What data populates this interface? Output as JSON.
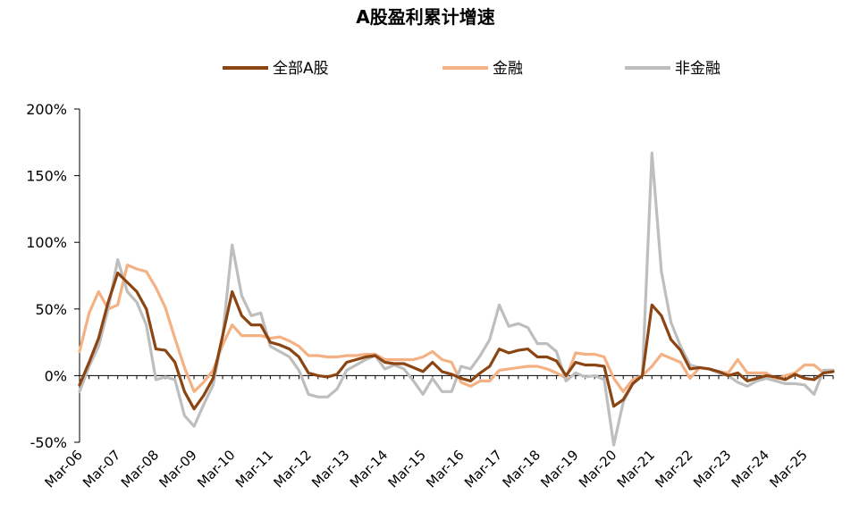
{
  "chart_data": {
    "type": "line",
    "title": "A股盈利累计增速",
    "xlabel": "",
    "ylabel": "",
    "ylim": [
      -50,
      200
    ],
    "y_ticks": [
      "200%",
      "150%",
      "100%",
      "50%",
      "0%",
      "-50%"
    ],
    "y_tick_values": [
      200,
      150,
      100,
      50,
      0,
      -50
    ],
    "x_ticks": [
      "Mar-06",
      "Mar-07",
      "Mar-08",
      "Mar-09",
      "Mar-10",
      "Mar-11",
      "Mar-12",
      "Mar-13",
      "Mar-14",
      "Mar-15",
      "Mar-16",
      "Mar-17",
      "Mar-18",
      "Mar-19",
      "Mar-20",
      "Mar-21",
      "Mar-22",
      "Mar-23",
      "Mar-24",
      "Mar-25"
    ],
    "x_start": "2006-03",
    "frequency": "quarterly",
    "grid": false,
    "legend_position": "top",
    "series": [
      {
        "name": "全部A股",
        "color": "#8B4513",
        "values": [
          -7,
          10,
          28,
          55,
          77,
          70,
          63,
          50,
          20,
          19,
          10,
          -12,
          -25,
          -15,
          -2,
          30,
          63,
          45,
          38,
          38,
          25,
          23,
          20,
          14,
          2,
          0,
          -1,
          1,
          10,
          12,
          14,
          15,
          10,
          9,
          9,
          6,
          3,
          10,
          3,
          1,
          -2,
          -4,
          2,
          7,
          20,
          17,
          19,
          20,
          14,
          14,
          11,
          0,
          10,
          8,
          8,
          7,
          -23,
          -18,
          -6,
          0,
          53,
          45,
          27,
          19,
          5,
          6,
          5,
          3,
          0,
          2,
          -4,
          -2,
          0,
          -1,
          -3,
          1,
          -2,
          -3,
          2,
          3
        ]
      },
      {
        "name": "金融",
        "color": "#F4B183",
        "values": [
          18,
          47,
          63,
          50,
          53,
          83,
          80,
          78,
          66,
          51,
          28,
          6,
          -12,
          -5,
          4,
          23,
          38,
          30,
          30,
          30,
          28,
          29,
          26,
          22,
          15,
          15,
          14,
          14,
          15,
          15,
          16,
          16,
          12,
          12,
          12,
          12,
          14,
          18,
          12,
          10,
          -5,
          -8,
          -4,
          -4,
          4,
          5,
          6,
          7,
          7,
          5,
          2,
          -2,
          17,
          16,
          16,
          14,
          -2,
          -12,
          -3,
          0,
          7,
          16,
          13,
          10,
          -2,
          6,
          5,
          3,
          2,
          12,
          2,
          2,
          2,
          -3,
          0,
          2,
          8,
          8,
          2,
          3
        ]
      },
      {
        "name": "非金融",
        "color": "#BEBEBE",
        "values": [
          -12,
          7,
          22,
          50,
          87,
          63,
          55,
          38,
          -3,
          -1,
          -3,
          -30,
          -38,
          -22,
          -7,
          30,
          98,
          60,
          45,
          47,
          22,
          18,
          14,
          4,
          -14,
          -16,
          -16,
          -10,
          4,
          8,
          12,
          15,
          5,
          8,
          5,
          -4,
          -14,
          -2,
          -12,
          -12,
          7,
          5,
          15,
          27,
          53,
          37,
          39,
          36,
          24,
          24,
          18,
          -4,
          2,
          -1,
          0,
          -3,
          -52,
          -20,
          -6,
          0,
          167,
          78,
          40,
          22,
          8,
          6,
          5,
          2,
          0,
          -5,
          -8,
          -4,
          -2,
          -4,
          -6,
          -6,
          -7,
          -14,
          4,
          4
        ]
      }
    ]
  }
}
